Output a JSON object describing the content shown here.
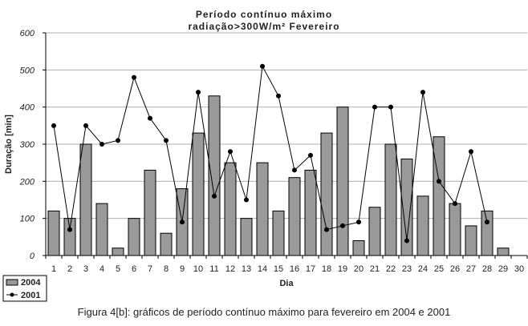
{
  "caption": "Figura 4[b]: gráficos de período contínuo máximo para fevereiro em 2004 e 2001",
  "chart_data": {
    "type": "bar",
    "title": [
      "Período contínuo máximo",
      "radiação>300W/m² Fevereiro"
    ],
    "xlabel": "Dia",
    "ylabel": "Duração [min]",
    "ylim": [
      0,
      600
    ],
    "yticks": [
      0,
      100,
      200,
      300,
      400,
      500,
      600
    ],
    "grid": true,
    "legend_position": "bottom-left",
    "categories": [
      "1",
      "2",
      "3",
      "4",
      "5",
      "6",
      "7",
      "8",
      "9",
      "10",
      "11",
      "12",
      "13",
      "14",
      "15",
      "16",
      "17",
      "18",
      "19",
      "20",
      "21",
      "22",
      "23",
      "24",
      "25",
      "26",
      "27",
      "28",
      "29",
      "30"
    ],
    "series": [
      {
        "name": "2004",
        "kind": "bar",
        "color": "#9a9a9a",
        "values": [
          120,
          100,
          300,
          140,
          20,
          100,
          230,
          60,
          180,
          330,
          430,
          250,
          100,
          250,
          120,
          210,
          230,
          330,
          400,
          40,
          130,
          300,
          260,
          160,
          320,
          140,
          80,
          120,
          20,
          null
        ]
      },
      {
        "name": "2001",
        "kind": "line",
        "color": "#000000",
        "values": [
          350,
          70,
          350,
          300,
          310,
          480,
          370,
          310,
          90,
          440,
          160,
          280,
          150,
          510,
          430,
          230,
          270,
          70,
          80,
          90,
          400,
          400,
          40,
          440,
          200,
          140,
          280,
          90,
          null,
          null
        ]
      }
    ]
  }
}
